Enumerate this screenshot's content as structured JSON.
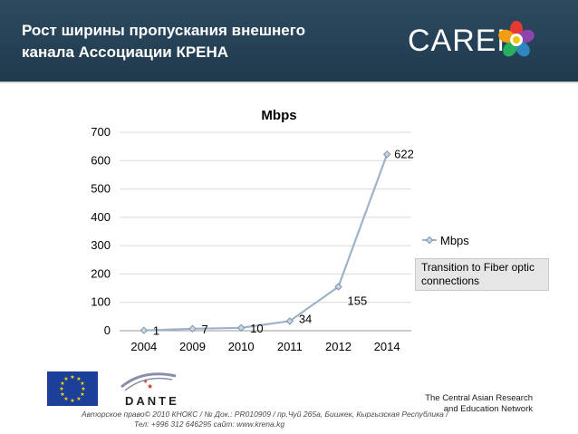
{
  "header": {
    "title_line1": "Рост ширины пропускания внешнего",
    "title_line2": "канала Ассоциации КРЕНА",
    "logo_text": "CAREN"
  },
  "chart_data": {
    "type": "line",
    "title": "Mbps",
    "categories": [
      "2004",
      "2009",
      "2010",
      "2011",
      "2012",
      "2014"
    ],
    "series": [
      {
        "name": "Mbps",
        "values": [
          1,
          7,
          10,
          34,
          155,
          622
        ]
      }
    ],
    "data_labels": [
      "1",
      "7",
      "10",
      "34",
      "155",
      "622"
    ],
    "ylim": [
      0,
      700
    ],
    "yticks": [
      0,
      100,
      200,
      300,
      400,
      500,
      600,
      700
    ],
    "ytick_labels": [
      "0",
      "100",
      "200",
      "300",
      "400",
      "500",
      "600",
      "700"
    ],
    "grid": true,
    "legend": "right",
    "annotation": "Transition to Fiber optic connections",
    "colors": {
      "line": "#9fb3c8",
      "grid": "#d9d9d9"
    }
  },
  "footer": {
    "dante_label": "DANTE",
    "network_line1": "The Central Asian Research",
    "network_line2": "and Education Network",
    "copyright_line1": "Авторское право© 2010  КНОКС / № Док.: PR010909 /  пр.Чуй  265а, Бишкек, Кыргызская Республика /",
    "copyright_line2": "Тел: +996 312 646295  сайт:  www.krena.kg"
  }
}
